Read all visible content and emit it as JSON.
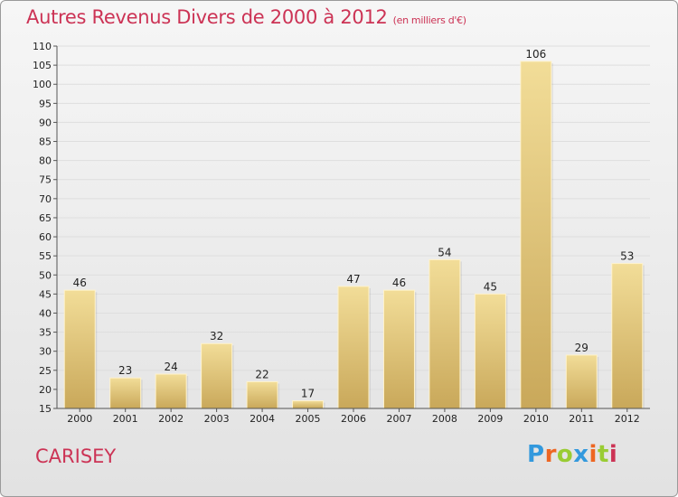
{
  "header": {
    "title": "Autres Revenus Divers de 2000 à 2012",
    "unit": "(en milliers d'€)"
  },
  "footer": {
    "city": "CARISEY",
    "logo": {
      "letters": [
        "P",
        "r",
        "o",
        "x",
        "i",
        "t",
        "i"
      ],
      "colors": [
        "#3399dd",
        "#ee6622",
        "#99cc33",
        "#3399dd",
        "#ee6622",
        "#99cc33",
        "#cc3355"
      ]
    }
  },
  "colors": {
    "title": "#cc3355",
    "bar_light": "#f2dd98",
    "bar_dark": "#c9a85a",
    "axis": "#555555",
    "grid": "#dedede"
  },
  "chart_data": {
    "type": "bar",
    "title": "Autres Revenus Divers de 2000 à 2012",
    "xlabel": "",
    "ylabel": "",
    "categories": [
      "2000",
      "2001",
      "2002",
      "2003",
      "2004",
      "2005",
      "2006",
      "2007",
      "2008",
      "2009",
      "2010",
      "2011",
      "2012"
    ],
    "values": [
      46,
      23,
      24,
      32,
      22,
      17,
      47,
      46,
      54,
      45,
      106,
      29,
      53
    ],
    "ylim": [
      15,
      110
    ],
    "yticks": [
      15,
      20,
      25,
      30,
      35,
      40,
      45,
      50,
      55,
      60,
      65,
      70,
      75,
      80,
      85,
      90,
      95,
      100,
      105,
      110
    ],
    "grid": true,
    "legend": "none"
  }
}
